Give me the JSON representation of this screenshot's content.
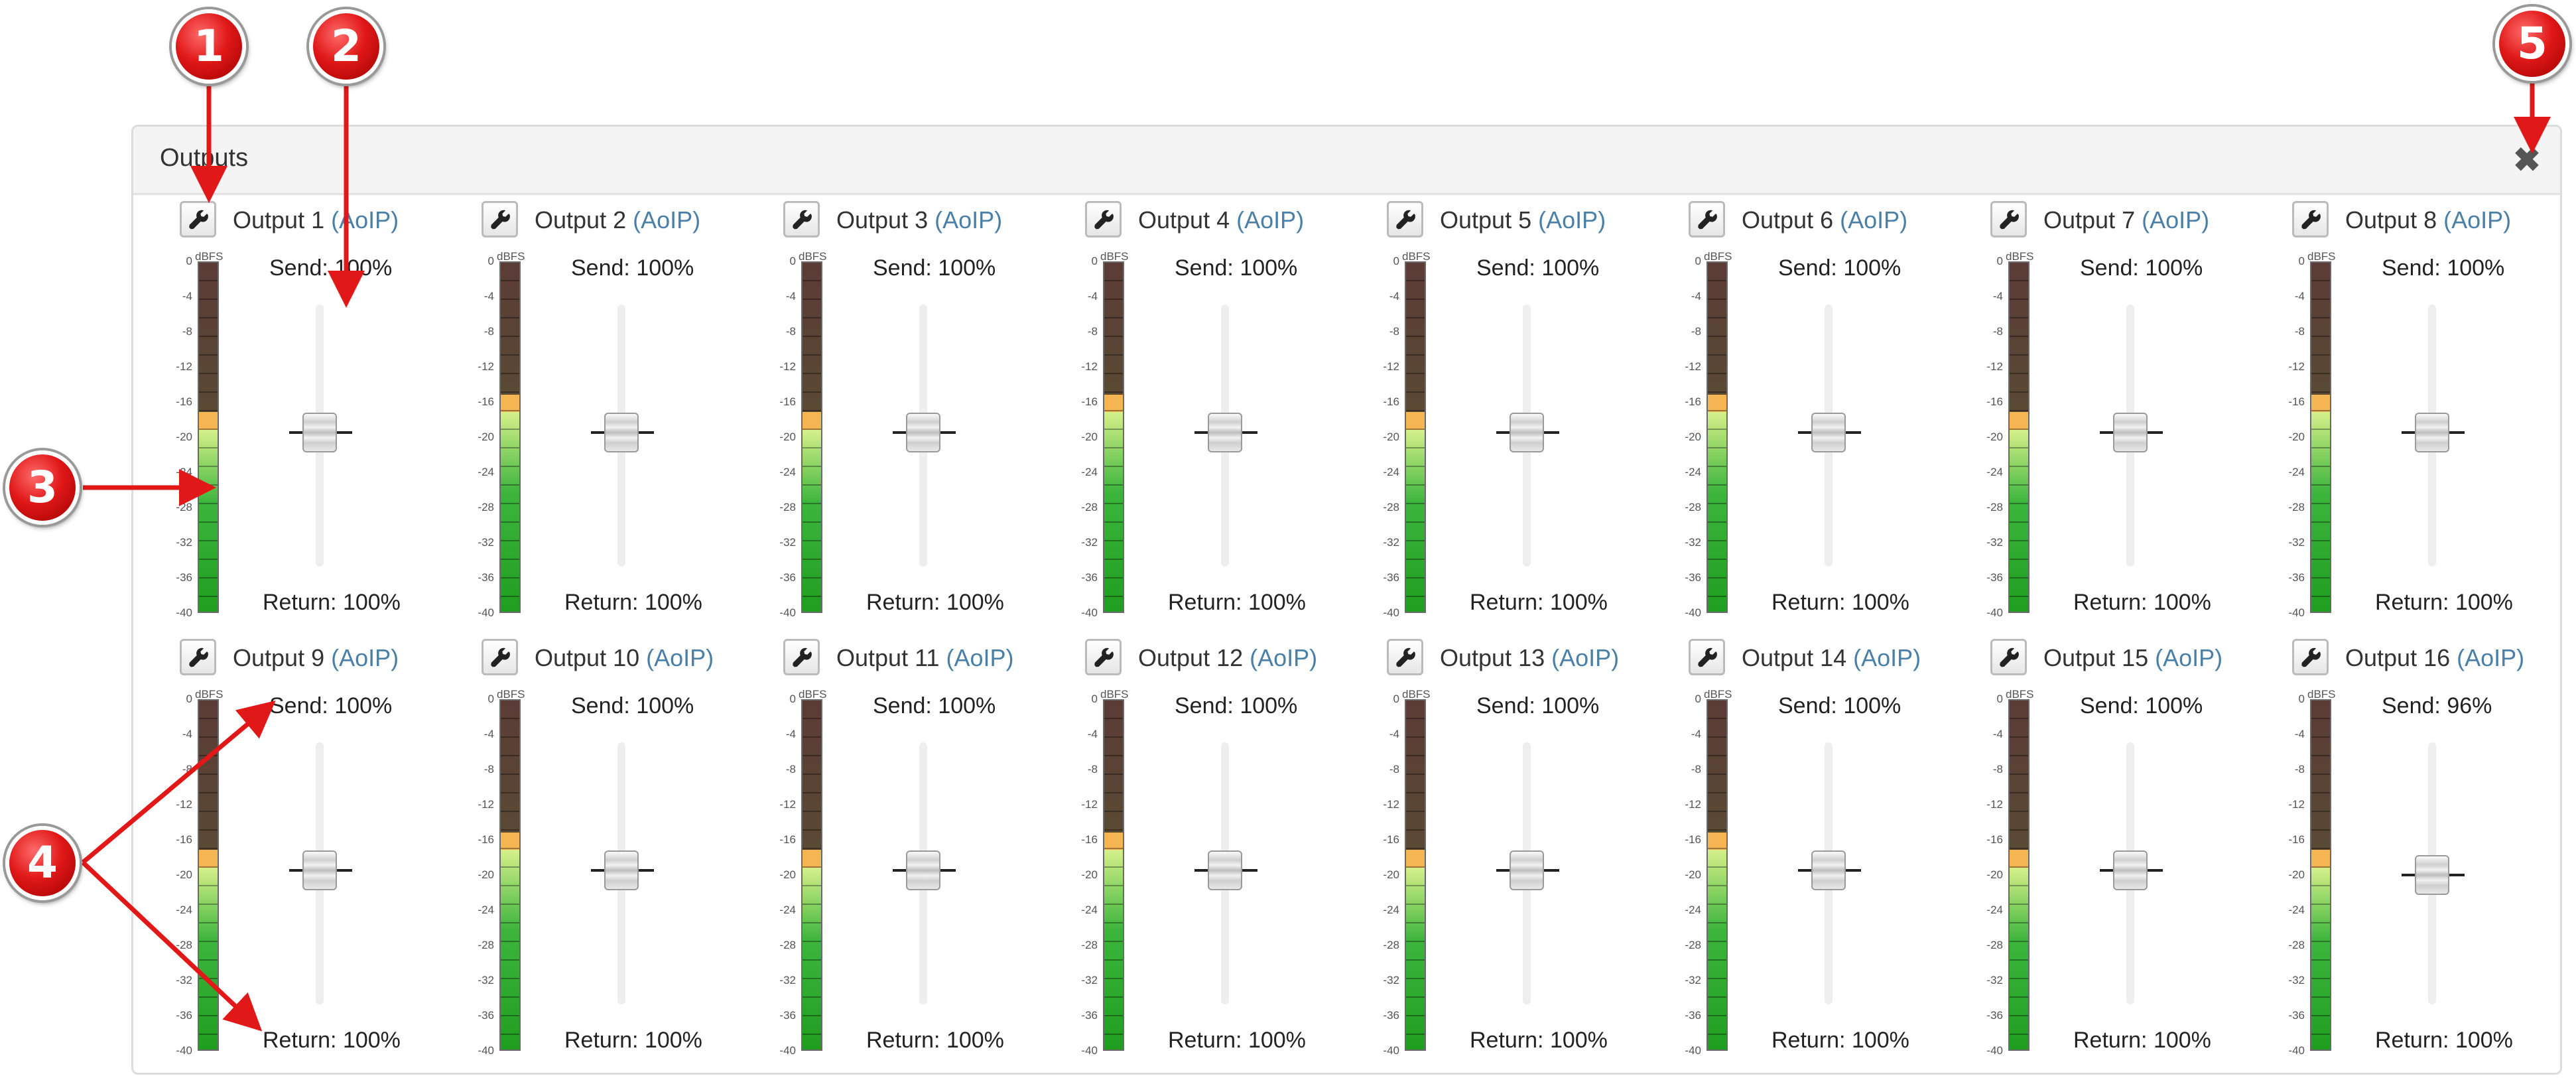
{
  "panel": {
    "title": "Outputs",
    "close_glyph": "✖"
  },
  "colors": {
    "meter_red": "#5b3b36",
    "meter_brown": "#5a4a34",
    "meter_orange": "#f5b552",
    "meter_green_top": "#d6f08a",
    "meter_green": "#3db53d",
    "meter_green_bottom": "#1f9e1f",
    "proto_link": "#4a7fa8",
    "callout_red": "#e01818"
  },
  "scale_labels": [
    "0",
    "-4",
    "-8",
    "-12",
    "-16",
    "-20",
    "-24",
    "-28",
    "-32",
    "-36",
    "-40"
  ],
  "scale_unit": "dBFS",
  "send_prefix": "Send:",
  "return_prefix": "Return:",
  "outputs": [
    {
      "name": "Output 1",
      "proto": "(AoIP)",
      "send": "100%",
      "return": "100%",
      "send_level_db": -19.5,
      "orange_start_db": -17
    },
    {
      "name": "Output 2",
      "proto": "(AoIP)",
      "send": "100%",
      "return": "100%",
      "send_level_db": -19.5,
      "orange_start_db": -15
    },
    {
      "name": "Output 3",
      "proto": "(AoIP)",
      "send": "100%",
      "return": "100%",
      "send_level_db": -19.5,
      "orange_start_db": -17
    },
    {
      "name": "Output 4",
      "proto": "(AoIP)",
      "send": "100%",
      "return": "100%",
      "send_level_db": -19.5,
      "orange_start_db": -15
    },
    {
      "name": "Output 5",
      "proto": "(AoIP)",
      "send": "100%",
      "return": "100%",
      "send_level_db": -19.5,
      "orange_start_db": -17
    },
    {
      "name": "Output 6",
      "proto": "(AoIP)",
      "send": "100%",
      "return": "100%",
      "send_level_db": -19.5,
      "orange_start_db": -15
    },
    {
      "name": "Output 7",
      "proto": "(AoIP)",
      "send": "100%",
      "return": "100%",
      "send_level_db": -19.5,
      "orange_start_db": -17
    },
    {
      "name": "Output 8",
      "proto": "(AoIP)",
      "send": "100%",
      "return": "100%",
      "send_level_db": -19.5,
      "orange_start_db": -15
    },
    {
      "name": "Output 9",
      "proto": "(AoIP)",
      "send": "100%",
      "return": "100%",
      "send_level_db": -19.5,
      "orange_start_db": -17
    },
    {
      "name": "Output 10",
      "proto": "(AoIP)",
      "send": "100%",
      "return": "100%",
      "send_level_db": -19.5,
      "orange_start_db": -15
    },
    {
      "name": "Output 11",
      "proto": "(AoIP)",
      "send": "100%",
      "return": "100%",
      "send_level_db": -19.5,
      "orange_start_db": -17
    },
    {
      "name": "Output 12",
      "proto": "(AoIP)",
      "send": "100%",
      "return": "100%",
      "send_level_db": -19.5,
      "orange_start_db": -15
    },
    {
      "name": "Output 13",
      "proto": "(AoIP)",
      "send": "100%",
      "return": "100%",
      "send_level_db": -19.5,
      "orange_start_db": -17
    },
    {
      "name": "Output 14",
      "proto": "(AoIP)",
      "send": "100%",
      "return": "100%",
      "send_level_db": -19.5,
      "orange_start_db": -15
    },
    {
      "name": "Output 15",
      "proto": "(AoIP)",
      "send": "100%",
      "return": "100%",
      "send_level_db": -19.5,
      "orange_start_db": -17
    },
    {
      "name": "Output 16",
      "proto": "(AoIP)",
      "send": "96%",
      "return": "100%",
      "send_level_db": -20,
      "orange_start_db": -17
    }
  ],
  "callouts": [
    "1",
    "2",
    "3",
    "4",
    "5"
  ]
}
